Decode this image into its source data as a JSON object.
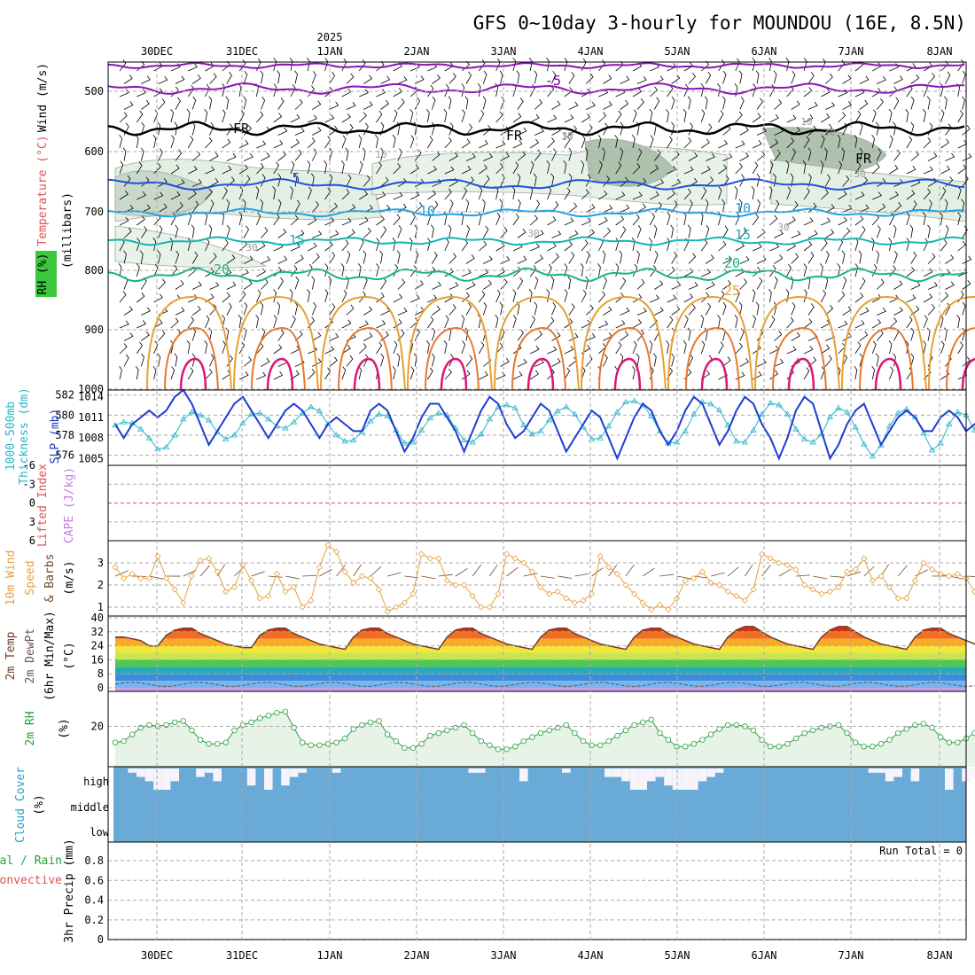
{
  "title": "GFS 0~10day 3-hourly for MOUNDOU (16E, 8.5N)",
  "year_label": "2025",
  "days": [
    "30DEC",
    "31DEC",
    "1JAN",
    "2JAN",
    "3JAN",
    "4JAN",
    "5JAN",
    "6JAN",
    "7JAN",
    "8JAN"
  ],
  "run_total": "Run Total = 0",
  "colors": {
    "purple": "#8a14b4",
    "black": "#000000",
    "blue": "#1e50dc",
    "lightblue": "#1ea0e6",
    "cyan": "#14b4b4",
    "green": "#14b48c",
    "orange": "#e6a030",
    "darkorange": "#e6782a",
    "magenta": "#dc1478",
    "slp": "#1e3cd2",
    "thick": "#28b4c8",
    "wind10": "#e6a03c",
    "rh": "#28a03c",
    "cloud": "#6aaad6",
    "grid": "#aaaaaa"
  },
  "panels": {
    "upper": {
      "y_labels": [
        "Wind (m/s)",
        "Temperature (°C)",
        "RH (%)"
      ],
      "axis_label": "(millibars)",
      "pressure_ticks": [
        500,
        600,
        700,
        800,
        900,
        1000
      ],
      "contour_labels": [
        "5",
        "FR",
        "FR",
        "FR",
        "-5",
        "-5",
        "10",
        "10",
        "15",
        "15",
        "20",
        "20",
        "25",
        "10",
        "30",
        "30",
        "30",
        "10",
        "10",
        "30",
        "30",
        "30"
      ]
    },
    "slp": {
      "y_labels": [
        "1000-500mb",
        "Thickness (dm)",
        "SLP (mb)"
      ],
      "thickness_ticks": [
        582,
        580,
        578,
        576
      ],
      "slp_ticks": [
        1014,
        1011,
        1008,
        1005
      ]
    },
    "cape": {
      "y_labels": [
        "Lifted Index",
        "CAPE (J/kg)"
      ],
      "ticks": [
        "-6",
        "-3",
        "0",
        "3",
        "6"
      ]
    },
    "wind10": {
      "y_labels": [
        "10m Wind",
        "Speed",
        "& Barbs",
        "(m/s)"
      ],
      "ticks": [
        1,
        2,
        3
      ]
    },
    "temp2m": {
      "y_labels": [
        "2m Temp",
        "2m DewPt",
        "(6hr Min/Max)",
        "(°C)"
      ],
      "ticks": [
        40,
        32,
        24,
        16,
        8,
        0
      ]
    },
    "rh2m": {
      "y_labels": [
        "2m RH",
        "(%)"
      ],
      "ticks": [
        20
      ]
    },
    "cloud": {
      "y_labels": [
        "Cloud Cover",
        "(%)"
      ],
      "levels": [
        "high",
        "middle",
        "low"
      ]
    },
    "precip": {
      "y_labels": [
        "Total / Rain",
        "Convective",
        "3hr Precip (mm)"
      ],
      "ticks": [
        "0.8",
        "0.6",
        "0.4",
        "0.2",
        "0"
      ]
    }
  },
  "chart_data": [
    {
      "type": "line",
      "name": "SLP",
      "ylabel": "SLP (mb)",
      "ylim": [
        1004,
        1015
      ],
      "values": [
        1010,
        1008,
        1010,
        1011,
        1012,
        1011,
        1012,
        1014,
        1015,
        1013,
        1010,
        1007,
        1009,
        1011,
        1013,
        1014,
        1012,
        1010,
        1008,
        1010,
        1012,
        1013,
        1012,
        1010,
        1008,
        1010,
        1011,
        1010,
        1009,
        1009,
        1012,
        1013,
        1012,
        1009,
        1006,
        1008,
        1011,
        1013,
        1013,
        1011,
        1009,
        1006,
        1009,
        1012,
        1014,
        1013,
        1010,
        1008,
        1009,
        1011,
        1013,
        1012,
        1009,
        1006,
        1008,
        1010,
        1012,
        1011,
        1008,
        1005,
        1008,
        1011,
        1013,
        1012,
        1009,
        1007,
        1009,
        1012,
        1014,
        1013,
        1010,
        1007,
        1009,
        1012,
        1014,
        1013,
        1010,
        1008,
        1005,
        1008,
        1012,
        1014,
        1013,
        1009,
        1005,
        1007,
        1010,
        1012,
        1013,
        1010,
        1007,
        1009,
        1011,
        1012,
        1011,
        1009,
        1009,
        1011,
        1012,
        1011,
        1009,
        1010,
        1011,
        1012
      ]
    },
    {
      "type": "line",
      "name": "1000-500mb Thickness",
      "ylabel": "Thickness (dm)",
      "ylim": [
        575,
        582.5
      ],
      "values": [
        579,
        579.3,
        579.2,
        578.6,
        577.7,
        576.6,
        576.8,
        578,
        579.6,
        580.3,
        580,
        579.5,
        578.3,
        577.6,
        578,
        579.2,
        580.1,
        580.2,
        579.6,
        578.9,
        578.7,
        579.3,
        580.2,
        580.8,
        580.4,
        579.1,
        578,
        577.4,
        577.5,
        578.3,
        579.4,
        580.1,
        579.9,
        578.5,
        577.2,
        577.3,
        578.5,
        579.7,
        580.2,
        580,
        578.7,
        577.5,
        577.3,
        578.1,
        579.6,
        580.8,
        581,
        580.7,
        579,
        578.1,
        578.4,
        579.5,
        580.4,
        580.8,
        580.1,
        578.8,
        577.6,
        577.7,
        578.9,
        580.3,
        581.3,
        581.4,
        581,
        579.9,
        578.4,
        577.2,
        577.3,
        578.4,
        580.1,
        581.3,
        581.1,
        580.5,
        579,
        577.4,
        577.3,
        578.5,
        580.1,
        581.2,
        581,
        580.1,
        578.6,
        577.6,
        577.3,
        578.1,
        579.8,
        580.7,
        580.3,
        578.8,
        577.1,
        575.9,
        577,
        578.9,
        580.2,
        580.6,
        579.8,
        578.2,
        576.5,
        577.2,
        579.1,
        580.3,
        580,
        578.5,
        577.1,
        575.8
      ]
    },
    {
      "type": "line",
      "name": "10m Wind Speed",
      "ylabel": "(m/s)",
      "ylim": [
        0.6,
        4
      ],
      "values": [
        2.8,
        2.3,
        2.5,
        2.3,
        2.3,
        3.3,
        2.3,
        1.8,
        1.2,
        2.4,
        3.1,
        3.2,
        2.6,
        1.7,
        1.9,
        2.9,
        2.2,
        1.4,
        1.5,
        2.5,
        1.7,
        1.9,
        1.0,
        1.3,
        2.8,
        3.8,
        3.5,
        2.6,
        2.1,
        2.4,
        2.3,
        1.8,
        0.8,
        1.0,
        1.2,
        1.6,
        3.4,
        3.2,
        3.2,
        2.2,
        2.0,
        2.0,
        1.5,
        1.0,
        1.0,
        1.6,
        3.4,
        3.2,
        3.0,
        2.6,
        1.9,
        1.6,
        1.7,
        1.4,
        1.2,
        1.3,
        1.6,
        3.3,
        2.8,
        2.5,
        2.0,
        1.6,
        1.2,
        0.9,
        1.1,
        0.9,
        1.4,
        2.2,
        2.3,
        2.6,
        2.1,
        2.0,
        1.7,
        1.5,
        1.3,
        1.8,
        3.4,
        3.2,
        3.0,
        2.9,
        2.7,
        2.0,
        1.8,
        1.6,
        1.7,
        1.9,
        2.6,
        2.7,
        3.2,
        2.2,
        2.4,
        1.9,
        1.4,
        1.4,
        2.2,
        3.0,
        2.7,
        2.5,
        2.4,
        2.5,
        2.3,
        1.7,
        1.3,
        1.8
      ]
    },
    {
      "type": "area",
      "name": "2m Temp",
      "ylabel": "(°C)",
      "ylim": [
        -2,
        41
      ],
      "values": [
        29,
        29,
        28,
        27,
        24,
        24,
        30,
        33,
        34,
        34,
        31,
        29,
        27,
        25,
        24,
        23,
        23,
        30,
        33,
        34,
        34,
        31,
        29,
        27,
        25,
        24,
        23,
        22,
        29,
        33,
        34,
        34,
        31,
        29,
        27,
        25,
        24,
        23,
        22,
        29,
        33,
        34,
        34,
        31,
        29,
        27,
        25,
        24,
        23,
        22,
        29,
        33,
        34,
        34,
        31,
        29,
        27,
        25,
        24,
        23,
        22,
        29,
        33,
        34,
        34,
        31,
        29,
        27,
        25,
        24,
        23,
        22,
        29,
        33,
        35,
        35,
        32,
        29,
        27,
        25,
        24,
        23,
        22,
        29,
        33,
        35,
        35,
        32,
        29,
        27,
        25,
        24,
        23,
        22,
        29,
        33,
        34,
        34,
        31,
        29,
        27,
        25,
        23,
        22,
        20
      ]
    },
    {
      "type": "area",
      "name": "2m RH",
      "ylabel": "(%)",
      "ylim": [
        5,
        33
      ],
      "values": [
        14,
        14.5,
        17,
        19.5,
        20.5,
        20,
        20.5,
        21.5,
        22,
        18.5,
        15,
        13.5,
        13.5,
        14,
        18.5,
        20.5,
        21.5,
        23,
        24,
        25,
        25.5,
        19.5,
        14,
        13,
        13,
        13.5,
        14,
        15.5,
        19,
        20.5,
        21.5,
        22,
        17,
        14.5,
        12,
        12,
        13.5,
        16.5,
        17.5,
        18.5,
        19.5,
        20.5,
        17.5,
        14.5,
        13,
        11.5,
        11.5,
        12.5,
        14.5,
        16,
        17.5,
        18.5,
        19.5,
        20.5,
        17.5,
        14.5,
        13,
        13,
        14.5,
        16.5,
        18.5,
        20.5,
        21.5,
        22.5,
        17.5,
        15,
        12.5,
        12.5,
        13.5,
        15,
        17,
        19,
        20.5,
        20.5,
        20,
        18.5,
        15,
        12.5,
        12.5,
        13.5,
        15.5,
        17.5,
        18.5,
        19.5,
        20,
        20.5,
        17.5,
        14,
        12.5,
        12.5,
        13.5,
        15,
        17.5,
        19,
        20.5,
        21,
        19.5,
        16,
        14,
        14,
        15.5,
        17.5,
        18.5,
        19.5,
        20.5
      ]
    },
    {
      "type": "bar",
      "name": "High Cloud Cover",
      "ylabel": "(%)",
      "ylim": [
        0,
        100
      ],
      "values": [
        0,
        0,
        20,
        40,
        60,
        100,
        100,
        60,
        0,
        0,
        40,
        20,
        60,
        0,
        0,
        0,
        80,
        0,
        100,
        0,
        80,
        40,
        20,
        0,
        0,
        0,
        20,
        0,
        0,
        0,
        0,
        0,
        0,
        0,
        0,
        0,
        0,
        0,
        0,
        0,
        0,
        0,
        20,
        20,
        0,
        0,
        0,
        0,
        60,
        0,
        0,
        0,
        0,
        20,
        0,
        0,
        0,
        0,
        40,
        40,
        60,
        100,
        100,
        60,
        40,
        80,
        100,
        100,
        100,
        60,
        40,
        20,
        0,
        0,
        0,
        0,
        0,
        0,
        0,
        0,
        0,
        0,
        0,
        0,
        0,
        0,
        0,
        0,
        0,
        20,
        20,
        60,
        40,
        0,
        60,
        0,
        0,
        0,
        100,
        0,
        60,
        40,
        40,
        0
      ]
    },
    {
      "type": "bar",
      "name": "3hr Precip",
      "ylabel": "3hr Precip (mm)",
      "ylim": [
        0,
        0.9
      ],
      "values": []
    }
  ]
}
